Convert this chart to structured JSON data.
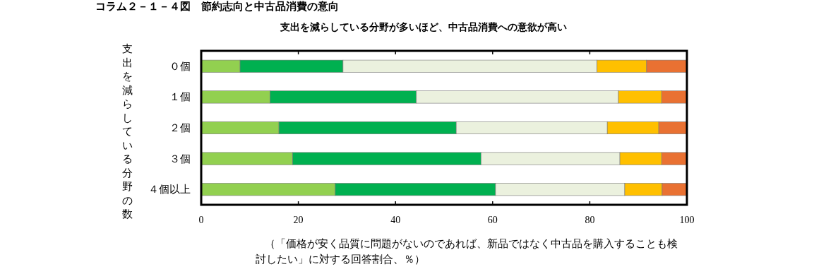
{
  "chart_data": {
    "type": "bar",
    "orientation": "horizontal",
    "stacked": true,
    "title": "コラム２－１－４図　節約志向と中古品消費の意向",
    "subtitle": "支出を減らしている分野が多いほど、中古品消費への意欲が高い",
    "ylabel": "支出を減らしている分野の数",
    "categories": [
      "０個",
      "１個",
      "２個",
      "３個",
      "４個以上"
    ],
    "series": [
      {
        "color": "#92d050",
        "values": [
          8.0,
          14.2,
          16.0,
          18.8,
          27.6
        ]
      },
      {
        "color": "#00b050",
        "values": [
          21.2,
          30.1,
          36.5,
          38.8,
          33.0
        ]
      },
      {
        "color": "#ebf1de",
        "values": [
          52.3,
          41.6,
          31.1,
          28.6,
          26.6
        ]
      },
      {
        "color": "#ffc000",
        "values": [
          10.2,
          8.9,
          10.6,
          8.6,
          7.7
        ]
      },
      {
        "color": "#e97132",
        "values": [
          8.3,
          5.2,
          5.8,
          5.2,
          5.1
        ]
      }
    ],
    "xlim": [
      0,
      100
    ],
    "xticks": [
      0,
      20,
      40,
      60,
      80,
      100
    ],
    "annotations": [
      "（「価格が安く品質に問題がないのであれば、新品ではなく中古品を購入することも検討したい」に対する回答割合、％）"
    ]
  }
}
